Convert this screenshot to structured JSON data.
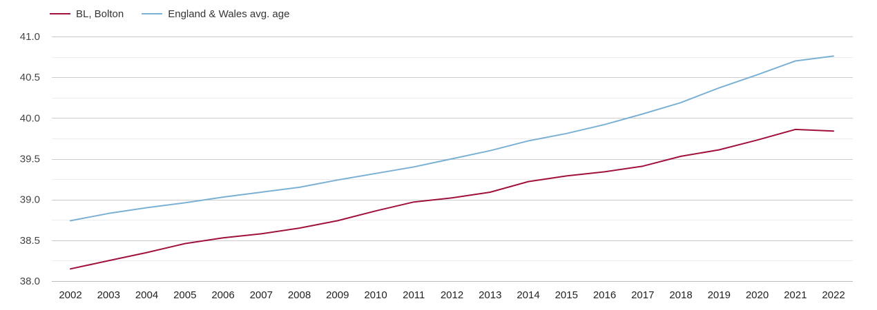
{
  "chart_data": {
    "type": "line",
    "title": "",
    "xlabel": "",
    "ylabel": "",
    "categories": [
      "2002",
      "2003",
      "2004",
      "2005",
      "2006",
      "2007",
      "2008",
      "2009",
      "2010",
      "2011",
      "2012",
      "2013",
      "2014",
      "2015",
      "2016",
      "2017",
      "2018",
      "2019",
      "2020",
      "2021",
      "2022"
    ],
    "ylim": [
      38.0,
      41.0
    ],
    "yticks": [
      "38.0",
      "38.5",
      "39.0",
      "39.5",
      "40.0",
      "40.5",
      "41.0"
    ],
    "grid": true,
    "legend_position": "top-left",
    "series": [
      {
        "name": "BL, Bolton",
        "color": "#a0103a",
        "values": [
          38.15,
          38.25,
          38.35,
          38.46,
          38.53,
          38.58,
          38.65,
          38.74,
          38.86,
          38.97,
          39.02,
          39.09,
          39.22,
          39.29,
          39.34,
          39.41,
          39.53,
          39.61,
          39.73,
          39.86,
          39.84
        ]
      },
      {
        "name": "England & Wales avg. age",
        "color": "#7ab0d4",
        "values": [
          38.74,
          38.83,
          38.9,
          38.96,
          39.03,
          39.09,
          39.15,
          39.24,
          39.32,
          39.4,
          39.5,
          39.6,
          39.72,
          39.81,
          39.92,
          40.05,
          40.19,
          40.37,
          40.53,
          40.7,
          40.76
        ]
      }
    ]
  }
}
